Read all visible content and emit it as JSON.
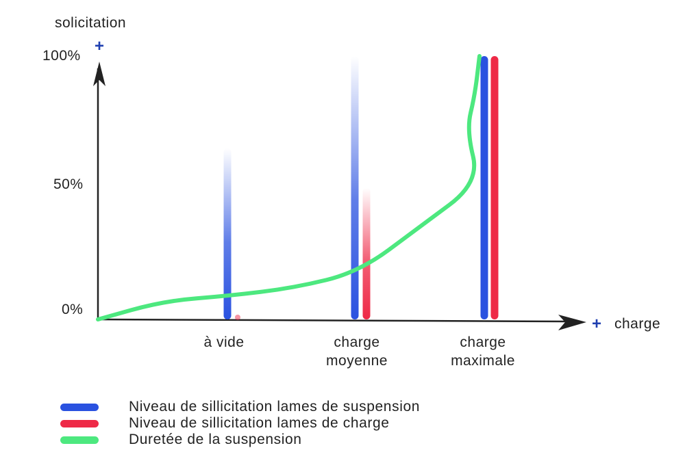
{
  "chart_data": {
    "type": "bar",
    "y_axis_title": "solicitation",
    "x_axis_title": "charge",
    "y_ticks": [
      "100%",
      "50%",
      "0%"
    ],
    "ylim": [
      0,
      100
    ],
    "categories": [
      {
        "line1": "à vide",
        "line2": ""
      },
      {
        "line1": "charge",
        "line2": "moyenne"
      },
      {
        "line1": "charge",
        "line2": "maximale"
      }
    ],
    "series": [
      {
        "name": "Niveau de sillicitation lames de suspension",
        "color": "#2a52e0",
        "values": [
          65,
          100,
          100
        ]
      },
      {
        "name": "Niveau de sillicitation lames de charge",
        "color": "#ee2a47",
        "values": [
          2,
          50,
          100
        ]
      },
      {
        "name": "Duretée de la suspension",
        "color": "#4de87f",
        "type": "line",
        "points": [
          [
            0,
            0
          ],
          [
            0.5,
            7
          ],
          [
            1,
            9
          ],
          [
            1.5,
            12
          ],
          [
            2,
            18
          ],
          [
            2.5,
            35
          ],
          [
            3,
            52
          ],
          [
            3.4,
            72
          ],
          [
            3.8,
            85
          ],
          [
            4.03,
            100
          ]
        ]
      }
    ],
    "axis_plus": "+"
  }
}
